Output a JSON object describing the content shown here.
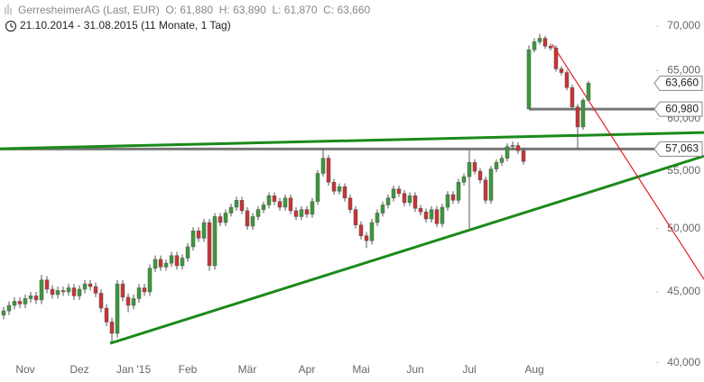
{
  "chart_data": {
    "type": "candlestick",
    "title": "GerresheimerAG (Last, EUR)  O: 61,880  H: 63,890  L: 61,870  C: 63,660",
    "subtitle": "21.10.2014 - 31.08.2015 (11 Monate, 1 Tag)",
    "log_scale": true,
    "up_color": "#3a9a3a",
    "down_color": "#cc3333",
    "ylim": [
      39500,
      73000
    ],
    "yticks": [
      {
        "value": 40000,
        "label": "40,000"
      },
      {
        "value": 45000,
        "label": "45,000"
      },
      {
        "value": 50000,
        "label": "50,000"
      },
      {
        "value": 55000,
        "label": "55,000"
      },
      {
        "value": 60000,
        "label": "60,000"
      },
      {
        "value": 65000,
        "label": "65,000"
      },
      {
        "value": 70000,
        "label": "70,000"
      }
    ],
    "categories": [
      null,
      null,
      null,
      null,
      "Nov",
      null,
      null,
      null,
      null,
      null,
      null,
      null,
      null,
      null,
      "Dez",
      null,
      null,
      null,
      null,
      null,
      null,
      null,
      null,
      null,
      "Jan '15",
      null,
      null,
      null,
      null,
      null,
      null,
      null,
      null,
      null,
      "Feb",
      null,
      null,
      null,
      null,
      null,
      null,
      null,
      null,
      null,
      null,
      "Mär",
      null,
      null,
      null,
      null,
      null,
      null,
      null,
      null,
      null,
      null,
      "Apr",
      null,
      null,
      null,
      null,
      null,
      null,
      null,
      null,
      null,
      "Mai",
      null,
      null,
      null,
      null,
      null,
      null,
      null,
      null,
      null,
      "Jun",
      null,
      null,
      null,
      null,
      null,
      null,
      null,
      null,
      null,
      "Jul",
      null,
      null,
      null,
      null,
      null,
      null,
      null,
      null,
      null,
      null,
      null,
      "Aug",
      null,
      null,
      null,
      null,
      null,
      null,
      null,
      null,
      null,
      null
    ],
    "open": [
      43300,
      43600,
      44000,
      44300,
      44100,
      44500,
      44700,
      44400,
      45900,
      45200,
      44800,
      45100,
      45000,
      45300,
      44700,
      45200,
      45600,
      45400,
      44900,
      43800,
      42800,
      42000,
      45600,
      44600,
      44000,
      44500,
      45300,
      45000,
      46800,
      47500,
      46900,
      47200,
      47800,
      47000,
      47600,
      48500,
      49800,
      49200,
      50500,
      47000,
      51000,
      50500,
      51300,
      51800,
      52400,
      51500,
      50200,
      51000,
      51600,
      52000,
      52800,
      52300,
      51800,
      52600,
      51500,
      51000,
      51600,
      51200,
      52300,
      54800,
      56200,
      54000,
      53200,
      53600,
      52600,
      51600,
      50300,
      49400,
      49000,
      50500,
      51300,
      52000,
      52600,
      53400,
      53000,
      52200,
      52800,
      51700,
      51400,
      50800,
      51600,
      50400,
      51800,
      52900,
      52400,
      54000,
      54500,
      55800,
      55000,
      54200,
      52400,
      55200,
      55800,
      56200,
      57300,
      57400,
      56900,
      61000,
      67300,
      68200,
      68600,
      67700,
      67500,
      65200,
      64800,
      63200,
      61200,
      59200,
      61880
    ],
    "high": [
      43900,
      44300,
      44600,
      44600,
      44800,
      45000,
      45000,
      46300,
      46200,
      45500,
      45400,
      45400,
      45600,
      45600,
      45500,
      45900,
      45900,
      45700,
      45200,
      44100,
      43100,
      45900,
      45900,
      44900,
      44800,
      45600,
      45600,
      47100,
      47800,
      47800,
      47500,
      48100,
      48100,
      47900,
      48800,
      50100,
      50100,
      50800,
      50800,
      51300,
      51300,
      51600,
      52100,
      52700,
      52700,
      51800,
      51300,
      51900,
      52300,
      53100,
      53100,
      52600,
      52900,
      52900,
      51800,
      51900,
      51900,
      52600,
      55100,
      57100,
      56500,
      54300,
      53900,
      53900,
      52900,
      51900,
      50600,
      49700,
      50800,
      51600,
      52300,
      52900,
      53700,
      53700,
      53300,
      53100,
      53100,
      52000,
      51700,
      51900,
      51900,
      52100,
      53200,
      53200,
      54300,
      54800,
      57000,
      56100,
      55300,
      54500,
      55500,
      56100,
      56500,
      57600,
      57800,
      57700,
      57200,
      67800,
      68600,
      69100,
      68900,
      68000,
      67800,
      65500,
      65100,
      63500,
      61500,
      62100,
      63890
    ],
    "low": [
      43000,
      43300,
      43700,
      43800,
      43800,
      44200,
      44100,
      44100,
      44900,
      44500,
      44500,
      44700,
      44700,
      44400,
      44400,
      44900,
      45100,
      44600,
      43500,
      42500,
      41300,
      41700,
      44300,
      43500,
      43700,
      44200,
      44700,
      44700,
      46500,
      46600,
      46600,
      46900,
      46700,
      46700,
      47300,
      48200,
      48900,
      48900,
      46600,
      46700,
      50200,
      50200,
      51000,
      51500,
      51200,
      49900,
      49900,
      50700,
      51300,
      51700,
      52000,
      51500,
      51500,
      51200,
      50700,
      50700,
      50900,
      50900,
      52000,
      54500,
      53700,
      52900,
      52900,
      52300,
      51300,
      50000,
      49100,
      48400,
      48700,
      50200,
      51000,
      51700,
      52300,
      52700,
      51900,
      51900,
      51400,
      51100,
      50500,
      50500,
      50100,
      50100,
      51500,
      52100,
      52100,
      53700,
      50000,
      54700,
      53900,
      52100,
      52100,
      54900,
      55500,
      55900,
      57000,
      56600,
      55600,
      60980,
      67000,
      67900,
      67400,
      67200,
      64900,
      64500,
      62900,
      60900,
      57100,
      58900,
      61870
    ],
    "close": [
      43600,
      44000,
      44300,
      44100,
      44500,
      44700,
      44400,
      45900,
      45200,
      44800,
      45100,
      45000,
      45300,
      44700,
      45200,
      45600,
      45400,
      44900,
      43800,
      42800,
      42000,
      45600,
      44600,
      44000,
      44500,
      45300,
      45000,
      46800,
      47500,
      46900,
      47200,
      47800,
      47000,
      47600,
      48500,
      49800,
      49200,
      50500,
      47000,
      51000,
      50500,
      51300,
      51800,
      52400,
      51500,
      50200,
      51000,
      51600,
      52000,
      52800,
      52300,
      51800,
      52600,
      51500,
      51000,
      51600,
      51200,
      52300,
      54800,
      56200,
      54000,
      53200,
      53600,
      52600,
      51600,
      50300,
      49400,
      49000,
      50500,
      51300,
      52000,
      52600,
      53400,
      53000,
      52200,
      52800,
      51700,
      51400,
      50800,
      51600,
      50400,
      51800,
      52900,
      52400,
      54000,
      54500,
      55800,
      55000,
      54200,
      52400,
      55200,
      55800,
      56200,
      57300,
      57400,
      56900,
      55900,
      67300,
      68200,
      68600,
      67700,
      67500,
      65200,
      64800,
      63200,
      61200,
      59200,
      61880,
      63660
    ],
    "trendlines": [
      {
        "color": "#1a8a1a",
        "x": [
          -0.67,
          129.33
        ],
        "values": [
          57090,
          58650
        ]
      },
      {
        "color": "#1a8a1a",
        "x": [
          19.67,
          129.33
        ],
        "values": [
          41310,
          56400
        ]
      },
      {
        "color": "#e02020",
        "x": [
          101.33,
          129.33
        ],
        "values": [
          67900,
          45950
        ]
      }
    ],
    "levels": [
      {
        "value": 60980,
        "label": "60,980",
        "from": 97
      },
      {
        "value": 57063,
        "label": "57,063",
        "from": -0.67
      }
    ],
    "last_price": {
      "value": 63660,
      "label": "63,660"
    }
  }
}
